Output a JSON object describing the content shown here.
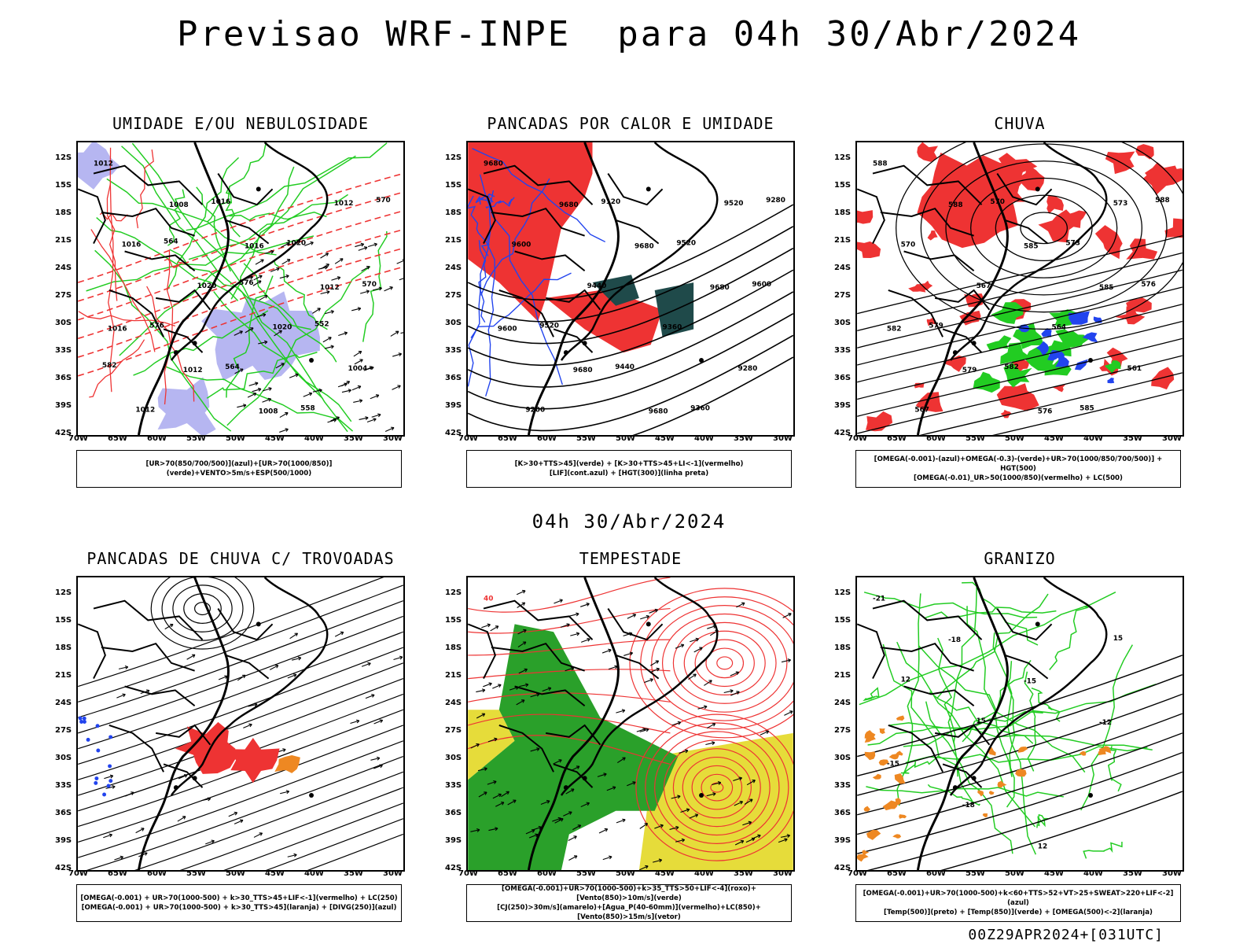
{
  "page": {
    "main_title": "Previsao WRF-INPE  para 04h 30/Abr/2024",
    "mid_date": "04h 30/Abr/2024",
    "footer_code": "00Z29APR2024+[031UTC]"
  },
  "axes": {
    "lat_labels": [
      "12S",
      "15S",
      "18S",
      "21S",
      "24S",
      "27S",
      "30S",
      "33S",
      "36S",
      "39S",
      "42S"
    ],
    "lon_labels": [
      "70W",
      "65W",
      "60W",
      "55W",
      "50W",
      "45W",
      "40W",
      "35W",
      "30W"
    ]
  },
  "colors": {
    "green": "#22cc22",
    "red": "#ee3333",
    "blue": "#2244ee",
    "lavender": "#a9a9ee",
    "darkteal": "#1f4a4a",
    "orange": "#ee8822",
    "yellow": "#e6dc3a",
    "forest": "#2aa02a"
  },
  "panels": [
    {
      "id": "umidade",
      "title": "UMIDADE E/OU NEBULOSIDADE",
      "legend": [
        "[UR>70(850/700/500)](azul)+[UR>70(1000/850)](verde)+VENTO>5m/s+ESP(500/1000)"
      ],
      "contour_labels": [
        "1012",
        "1008",
        "1016",
        "1012",
        "1016",
        "1012",
        "1008",
        "1012",
        "1016",
        "1020",
        "1020",
        "1004",
        "1012",
        "1016",
        "1020",
        "570",
        "576",
        "564",
        "558",
        "570",
        "564",
        "576",
        "552",
        "582"
      ]
    },
    {
      "id": "pancadas_calor",
      "title": "PANCADAS POR CALOR E UMIDADE",
      "legend": [
        "[K>30+TTS>45](verde) + [K>30+TTS>45+LI<-1](vermelho)",
        "[LIF](cont.azul) + [HGT(300)](linha preta)"
      ],
      "contour_labels": [
        "9680",
        "9680",
        "9680",
        "9680",
        "9600",
        "9680",
        "9680",
        "9520",
        "9600",
        "9440",
        "9360",
        "9280",
        "9200",
        "9120",
        "9520",
        "9600",
        "9520",
        "9440",
        "9360",
        "9280"
      ]
    },
    {
      "id": "chuva",
      "title": "CHUVA",
      "legend": [
        "[OMEGA(-0.001)-(azul)+OMEGA(-0.3)-(verde)+UR>70(1000/850/700/500)] + HGT(500)",
        "[OMEGA(-0.01)_UR>50(1000/850)(vermelho) + LC(500)"
      ],
      "contour_labels": [
        "588",
        "588",
        "585",
        "585",
        "582",
        "579",
        "576",
        "573",
        "570",
        "567",
        "564",
        "561",
        "567",
        "570",
        "573",
        "576",
        "579",
        "582",
        "585",
        "588"
      ]
    },
    {
      "id": "pancadas_trovoadas",
      "title": "PANCADAS DE CHUVA C/ TROVOADAS",
      "legend": [
        "[OMEGA(-0.001) + UR>70(1000-500) + k>30_TTS>45+LIF<-1](vermelho) + LC(250)",
        "[OMEGA(-0.001) + UR>70(1000-500) + k>30_TTS>45](laranja) + [DIVG(250)](azul)"
      ],
      "contour_labels": []
    },
    {
      "id": "tempestade",
      "title": "TEMPESTADE",
      "legend": [
        "[OMEGA(-0.001)+UR>70(1000-500)+k>35_TTS>50+LIF<-4](roxo)+[Vento(850)>10m/s](verde)",
        "[CJ(250)>30m/s](amarelo)+[Agua_P(40-60mm)](vermelho)+LC(850)+[Vento(850)>15m/s](vetor)"
      ],
      "contour_labels": [
        "40"
      ]
    },
    {
      "id": "granizo",
      "title": "GRANIZO",
      "legend": [
        "[OMEGA(-0.001)+UR>70(1000-500)+k<60+TTS>52+VT>25+SWEAT>220+LIF<-2](azul)",
        "[Temp(500)](preto) + [Temp(850)](verde) + [OMEGA(500)<-2](laranja)"
      ],
      "contour_labels": [
        "-21",
        "-18",
        "-15",
        "-12",
        "-15",
        "-18",
        "12",
        "15",
        "12",
        "15"
      ]
    }
  ]
}
